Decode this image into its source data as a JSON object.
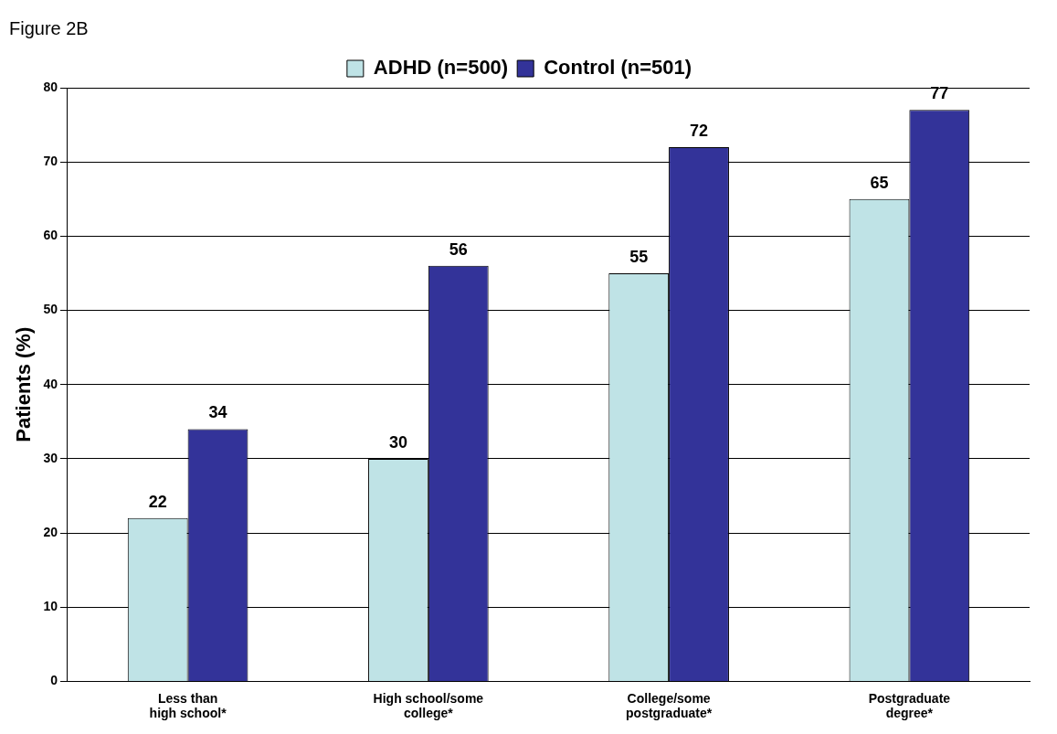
{
  "chart_data": {
    "type": "bar",
    "title": "Figure 2B",
    "ylabel": "Patients (%)",
    "categories": [
      "Less than high school*",
      "High school/some college*",
      "College/some postgraduate*",
      "Postgraduate degree*"
    ],
    "series": [
      {
        "name": "ADHD (n=500)",
        "color": "#bfe3e6",
        "values": [
          22,
          30,
          55,
          65
        ]
      },
      {
        "name": "Control (n=501)",
        "color": "#333399",
        "values": [
          34,
          56,
          72,
          77
        ]
      }
    ],
    "ylim": [
      0,
      80
    ],
    "yticks": [
      0,
      10,
      20,
      30,
      40,
      50,
      60,
      70,
      80
    ],
    "grid": "y",
    "legend": "top",
    "data_labels": true
  }
}
